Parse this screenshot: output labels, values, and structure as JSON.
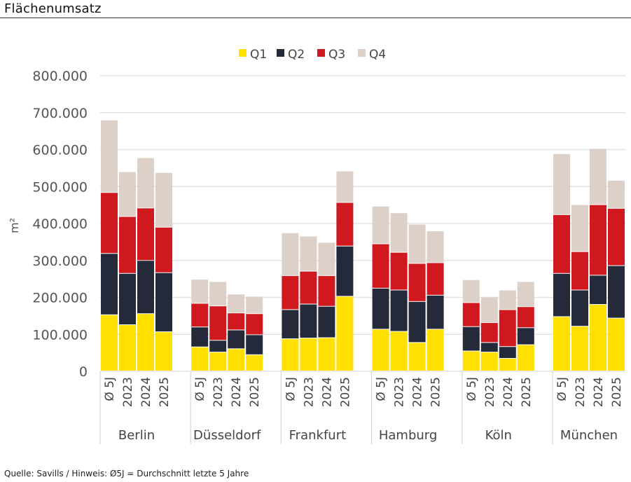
{
  "title": "Flächenumsatz",
  "footer": "Quelle: Savills / Hinweis: Ø5J = Durchschnitt letzte 5 Jahre",
  "chart_data": {
    "type": "bar",
    "stacked": true,
    "ylabel": "m²",
    "ylim": [
      0,
      800000
    ],
    "yticks": [
      0,
      100000,
      200000,
      300000,
      400000,
      500000,
      600000,
      700000,
      800000
    ],
    "ytick_labels": [
      "0",
      "100.000",
      "200.000",
      "300.000",
      "400.000",
      "500.000",
      "600.000",
      "700.000",
      "800.000"
    ],
    "grid": true,
    "legend_position": "top",
    "groups": [
      "Berlin",
      "Düsseldorf",
      "Frankfurt",
      "Hamburg",
      "Köln",
      "München"
    ],
    "categories": [
      "Ø 5J",
      "2023",
      "2024",
      "2025"
    ],
    "series": [
      {
        "name": "Q1",
        "color": "#FFE000",
        "values": [
          [
            152000,
            125000,
            155000,
            106000
          ],
          [
            65000,
            51000,
            60000,
            44000
          ],
          [
            87000,
            89000,
            90000,
            202000
          ],
          [
            113000,
            107000,
            77000,
            113000
          ],
          [
            54000,
            51000,
            34000,
            71000
          ],
          [
            147000,
            121000,
            180000,
            143000
          ]
        ]
      },
      {
        "name": "Q2",
        "color": "#252A3A",
        "values": [
          [
            166000,
            139000,
            144000,
            160000
          ],
          [
            54000,
            32000,
            51000,
            54000
          ],
          [
            79000,
            92000,
            85000,
            136000
          ],
          [
            111000,
            112000,
            111000,
            92000
          ],
          [
            66000,
            26000,
            32000,
            46000
          ],
          [
            117000,
            98000,
            79000,
            142000
          ]
        ]
      },
      {
        "name": "Q3",
        "color": "#D0181F",
        "values": [
          [
            165000,
            154000,
            142000,
            123000
          ],
          [
            64000,
            93000,
            46000,
            57000
          ],
          [
            92000,
            89000,
            83000,
            118000
          ],
          [
            120000,
            102000,
            103000,
            88000
          ],
          [
            65000,
            54000,
            100000,
            57000
          ],
          [
            159000,
            104000,
            191000,
            155000
          ]
        ]
      },
      {
        "name": "Q4",
        "color": "#DCD0C8",
        "values": [
          [
            196000,
            121000,
            136000,
            148000
          ],
          [
            65000,
            66000,
            51000,
            47000
          ],
          [
            116000,
            95000,
            90000,
            85000
          ],
          [
            102000,
            107000,
            106000,
            86000
          ],
          [
            62000,
            69000,
            53000,
            68000
          ],
          [
            165000,
            127000,
            152000,
            76000
          ]
        ]
      }
    ]
  }
}
